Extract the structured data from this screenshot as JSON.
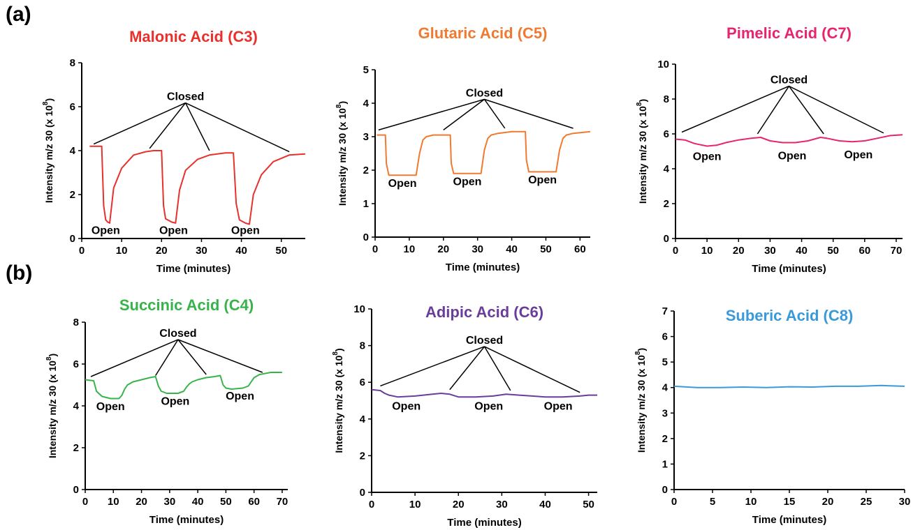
{
  "panel_labels": [
    "(a)",
    "(b)"
  ],
  "chart_data": [
    {
      "type": "line",
      "title": "Malonic Acid (C3)",
      "color": "#e8302c",
      "xlabel": "Time (minutes)",
      "ylabel": "Intensity m/z 30 (x 10",
      "ylabel_exp": "8",
      "ylabel_close": ")",
      "xlim": [
        0,
        56
      ],
      "ylim": [
        0,
        8
      ],
      "xticks": [
        0,
        10,
        20,
        30,
        40,
        50
      ],
      "yticks": [
        0,
        2,
        4,
        6,
        8
      ],
      "series": [
        {
          "x": [
            2,
            5,
            5.5,
            6,
            6.5,
            7,
            8,
            10,
            13,
            16,
            18,
            20,
            20.5,
            21,
            22.5,
            23.5,
            24.5,
            26,
            29,
            32,
            36,
            38,
            38.7,
            39.5,
            41,
            42,
            43,
            45,
            48,
            52,
            56
          ],
          "y": [
            4.2,
            4.2,
            1.5,
            0.85,
            0.75,
            0.7,
            2.3,
            3.2,
            3.8,
            3.95,
            4.0,
            4.0,
            1.5,
            0.9,
            0.75,
            0.7,
            2.2,
            3.1,
            3.6,
            3.8,
            3.9,
            3.9,
            1.6,
            0.85,
            0.7,
            0.65,
            2.0,
            2.9,
            3.5,
            3.8,
            3.85
          ]
        }
      ],
      "closed_label": "Closed",
      "closed_anchor": [
        26,
        6.3
      ],
      "closed_targets": [
        [
          3,
          4.3
        ],
        [
          17,
          4.1
        ],
        [
          32,
          4.0
        ],
        [
          52,
          3.95
        ]
      ],
      "open_labels": [
        {
          "text": "Open",
          "x": 6,
          "y": 0.2
        },
        {
          "text": "Open",
          "x": 23,
          "y": 0.2
        },
        {
          "text": "Open",
          "x": 41,
          "y": 0.2
        }
      ]
    },
    {
      "type": "line",
      "title": "Glutaric Acid (C5)",
      "color": "#f07a30",
      "xlabel": "Time (minutes)",
      "ylabel": "Intensity m/z 30 (x 10",
      "ylabel_exp": "8",
      "ylabel_close": ")",
      "xlim": [
        0,
        63
      ],
      "ylim": [
        0,
        5
      ],
      "xticks": [
        0,
        10,
        20,
        30,
        40,
        50,
        60
      ],
      "yticks": [
        0,
        1,
        2,
        3,
        4,
        5
      ],
      "series": [
        {
          "x": [
            0.5,
            3,
            3.3,
            4,
            12,
            13,
            14,
            15,
            17,
            20,
            22,
            22.3,
            23,
            31,
            32,
            33,
            34,
            36,
            40,
            44,
            44.3,
            45,
            53,
            54,
            55,
            56,
            58,
            63
          ],
          "y": [
            3.05,
            3.05,
            2.2,
            1.85,
            1.85,
            2.5,
            2.9,
            3.0,
            3.05,
            3.05,
            3.05,
            2.2,
            1.9,
            1.9,
            2.6,
            2.95,
            3.05,
            3.1,
            3.15,
            3.15,
            2.3,
            1.95,
            1.95,
            2.6,
            2.95,
            3.05,
            3.1,
            3.15
          ]
        }
      ],
      "closed_label": "Closed",
      "closed_anchor": [
        32,
        4.2
      ],
      "closed_targets": [
        [
          1,
          3.2
        ],
        [
          20,
          3.2
        ],
        [
          38,
          3.25
        ],
        [
          58,
          3.25
        ]
      ],
      "open_labels": [
        {
          "text": "Open",
          "x": 8,
          "y": 1.5
        },
        {
          "text": "Open",
          "x": 27,
          "y": 1.55
        },
        {
          "text": "Open",
          "x": 49,
          "y": 1.6
        }
      ]
    },
    {
      "type": "line",
      "title": "Pimelic Acid (C7)",
      "color": "#e8246e",
      "xlabel": "Time (minutes)",
      "ylabel": "Intensity m/z 30 (x 10",
      "ylabel_exp": "8",
      "ylabel_close": ")",
      "xlim": [
        0,
        72
      ],
      "ylim": [
        0,
        10
      ],
      "xticks": [
        0,
        10,
        20,
        30,
        40,
        50,
        60,
        70
      ],
      "yticks": [
        0,
        2,
        4,
        6,
        8,
        10
      ],
      "series": [
        {
          "x": [
            0,
            3,
            6,
            10,
            13,
            16,
            20,
            24,
            27,
            30,
            34,
            38,
            42,
            46,
            48,
            52,
            56,
            60,
            64,
            68,
            72
          ],
          "y": [
            5.7,
            5.65,
            5.45,
            5.3,
            5.35,
            5.5,
            5.65,
            5.75,
            5.8,
            5.6,
            5.5,
            5.5,
            5.6,
            5.8,
            5.75,
            5.6,
            5.55,
            5.6,
            5.75,
            5.9,
            5.95
          ]
        }
      ],
      "closed_label": "Closed",
      "closed_anchor": [
        36,
        8.9
      ],
      "closed_targets": [
        [
          2,
          6.1
        ],
        [
          26,
          6.0
        ],
        [
          47,
          6.0
        ],
        [
          66,
          6.05
        ]
      ],
      "open_labels": [
        {
          "text": "Open",
          "x": 10,
          "y": 4.5
        },
        {
          "text": "Open",
          "x": 37,
          "y": 4.55
        },
        {
          "text": "Open",
          "x": 58,
          "y": 4.6
        }
      ]
    },
    {
      "type": "line",
      "title": "Succinic Acid (C4)",
      "color": "#36b44a",
      "xlabel": "Time (minutes)",
      "ylabel": "Intensity m/z 30 (x 10",
      "ylabel_exp": "8",
      "ylabel_close": ")",
      "xlim": [
        0,
        72
      ],
      "ylim": [
        0,
        8
      ],
      "xticks": [
        0,
        10,
        20,
        30,
        40,
        50,
        60,
        70
      ],
      "yticks": [
        0,
        2,
        4,
        6,
        8
      ],
      "series": [
        {
          "x": [
            0,
            3,
            4,
            6,
            9,
            12,
            13,
            14,
            15,
            17,
            20,
            23,
            25,
            26,
            27,
            29,
            33,
            35,
            36,
            37,
            38,
            40,
            43,
            46,
            48,
            49,
            50,
            52,
            56,
            58,
            59,
            60,
            62,
            66,
            70
          ],
          "y": [
            5.25,
            5.2,
            4.7,
            4.45,
            4.35,
            4.35,
            4.5,
            4.8,
            5.0,
            5.15,
            5.25,
            5.35,
            5.4,
            4.95,
            4.7,
            4.6,
            4.6,
            4.7,
            4.9,
            5.05,
            5.15,
            5.25,
            5.35,
            5.4,
            5.45,
            5.0,
            4.85,
            4.8,
            4.85,
            4.95,
            5.15,
            5.35,
            5.5,
            5.6,
            5.6
          ]
        }
      ],
      "closed_label": "Closed",
      "closed_anchor": [
        33,
        7.3
      ],
      "closed_targets": [
        [
          2,
          5.4
        ],
        [
          25,
          5.45
        ],
        [
          43,
          5.5
        ],
        [
          63,
          5.6
        ]
      ],
      "open_labels": [
        {
          "text": "Open",
          "x": 9,
          "y": 3.8
        },
        {
          "text": "Open",
          "x": 32,
          "y": 4.05
        },
        {
          "text": "Open",
          "x": 55,
          "y": 4.3
        }
      ]
    },
    {
      "type": "line",
      "title": "Adipic Acid (C6)",
      "color": "#6a3d9a",
      "xlabel": "Time (minutes)",
      "ylabel": "Intensity m/z 30 (x 10",
      "ylabel_exp": "8",
      "ylabel_close": ")",
      "xlim": [
        0,
        52
      ],
      "ylim": [
        0,
        10
      ],
      "xticks": [
        0,
        10,
        20,
        30,
        40,
        50
      ],
      "yticks": [
        0,
        2,
        4,
        6,
        8,
        10
      ],
      "series": [
        {
          "x": [
            0,
            2,
            3,
            4,
            6,
            10,
            14,
            16,
            18,
            20,
            24,
            28,
            31,
            34,
            37,
            40,
            44,
            48,
            50,
            52
          ],
          "y": [
            5.6,
            5.55,
            5.4,
            5.3,
            5.2,
            5.25,
            5.35,
            5.4,
            5.35,
            5.2,
            5.2,
            5.25,
            5.35,
            5.3,
            5.25,
            5.2,
            5.2,
            5.25,
            5.3,
            5.3
          ]
        }
      ],
      "closed_label": "Closed",
      "closed_anchor": [
        26,
        8.1
      ],
      "closed_targets": [
        [
          2,
          5.8
        ],
        [
          18,
          5.6
        ],
        [
          32,
          5.55
        ],
        [
          48,
          5.45
        ]
      ],
      "open_labels": [
        {
          "text": "Open",
          "x": 8,
          "y": 4.5
        },
        {
          "text": "Open",
          "x": 27,
          "y": 4.5
        },
        {
          "text": "Open",
          "x": 43,
          "y": 4.5
        }
      ]
    },
    {
      "type": "line",
      "title": "Suberic Acid (C8)",
      "color": "#3a9ad9",
      "xlabel": "Time (minutes)",
      "ylabel": "Intensity m/z 30 (x 10",
      "ylabel_exp": "8",
      "ylabel_close": ")",
      "xlim": [
        0,
        30
      ],
      "ylim": [
        0,
        7
      ],
      "xticks": [
        0,
        5,
        10,
        15,
        20,
        25,
        30
      ],
      "yticks": [
        0,
        1,
        2,
        3,
        4,
        5,
        6,
        7
      ],
      "series": [
        {
          "x": [
            0,
            3,
            6,
            9,
            12,
            15,
            18,
            21,
            24,
            27,
            30
          ],
          "y": [
            4.05,
            4.0,
            4.0,
            4.02,
            4.0,
            4.03,
            4.02,
            4.05,
            4.05,
            4.08,
            4.05
          ]
        }
      ],
      "closed_label": "",
      "closed_anchor": null,
      "closed_targets": [],
      "open_labels": []
    }
  ]
}
